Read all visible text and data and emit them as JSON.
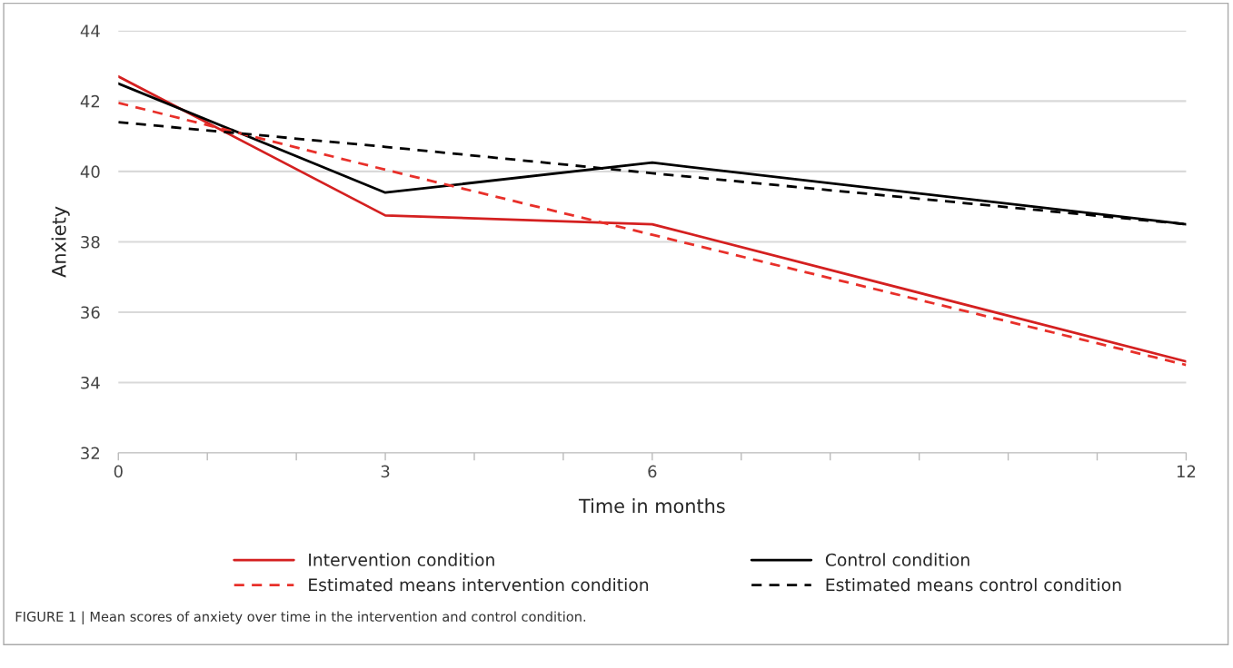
{
  "chart_data": {
    "type": "line",
    "xlabel": "Time in months",
    "ylabel": "Anxiety",
    "x": [
      0,
      3,
      6,
      12
    ],
    "series": [
      {
        "name": "Intervention condition",
        "color": "#d42020",
        "line_style": "solid",
        "values": [
          42.7,
          38.75,
          38.5,
          34.6
        ]
      },
      {
        "name": "Control condition",
        "color": "#000000",
        "line_style": "solid",
        "values": [
          42.5,
          39.4,
          40.25,
          38.5
        ]
      },
      {
        "name": "Estimated means intervention condition",
        "color": "#e8302a",
        "line_style": "dashed",
        "values": [
          41.95,
          40.05,
          38.2,
          34.5
        ]
      },
      {
        "name": "Estimated means control condition",
        "color": "#000000",
        "line_style": "dashed",
        "values": [
          41.4,
          40.7,
          39.95,
          38.5
        ]
      }
    ],
    "xlim": [
      0,
      12
    ],
    "ylim": [
      32,
      44
    ],
    "xticks": [
      0,
      {
        "value": 1,
        "label": null
      },
      {
        "value": 2,
        "label": null
      },
      3,
      {
        "value": 4,
        "label": null
      },
      {
        "value": 5,
        "label": null
      },
      6,
      {
        "value": 7,
        "label": null
      },
      {
        "value": 8,
        "label": null
      },
      {
        "value": 9,
        "label": null
      },
      {
        "value": 10,
        "label": null
      },
      {
        "value": 11,
        "label": null
      },
      12
    ],
    "yticks": [
      32,
      34,
      36,
      38,
      40,
      42,
      44
    ],
    "grid": "y",
    "legend": "bottom",
    "marker": "none",
    "annotations": [
      "FIGURE 1 | Mean scores of anxiety over time in the intervention and control condition."
    ]
  }
}
